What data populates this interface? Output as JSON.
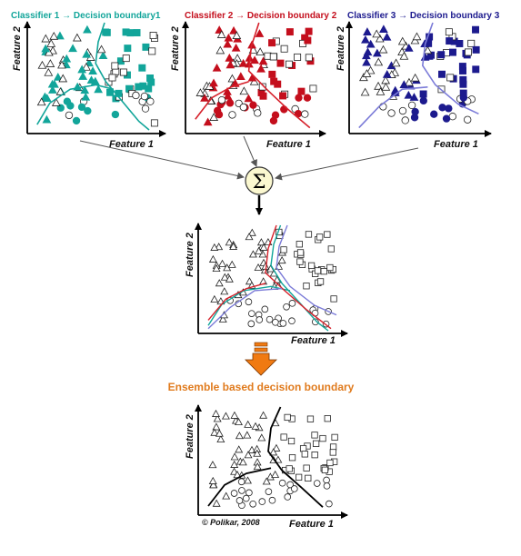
{
  "panels": [
    {
      "title": "Classifier 1 → Decision boundary1",
      "color": "#12a59a",
      "boundary_color": "#12a59a",
      "xlabel": "Feature 1",
      "ylabel": "Feature 2"
    },
    {
      "title": "Classifier 2 → Decision  boundary 2",
      "color": "#c40e1c",
      "boundary_color": "#d6202a",
      "xlabel": "Feature 1",
      "ylabel": "Feature 2"
    },
    {
      "title": "Classifier 3 → Decision  boundary  3",
      "color": "#1c1a8e",
      "boundary_color": "#7b7bd8",
      "xlabel": "Feature 1",
      "ylabel": "Feature 2"
    }
  ],
  "combined": {
    "xlabel": "Feature 1",
    "ylabel": "Feature 2",
    "sum_symbol": "Σ"
  },
  "ensemble": {
    "title": "Ensemble based decision boundary",
    "title_color": "#e07b1e",
    "xlabel": "Feature 1",
    "ylabel": "Feature 2"
  },
  "copyright": "© Polikar, 2008",
  "colors": {
    "arrow_orange": "#f07a12",
    "sum_fill": "#fbf8d0",
    "axis": "#000000"
  }
}
